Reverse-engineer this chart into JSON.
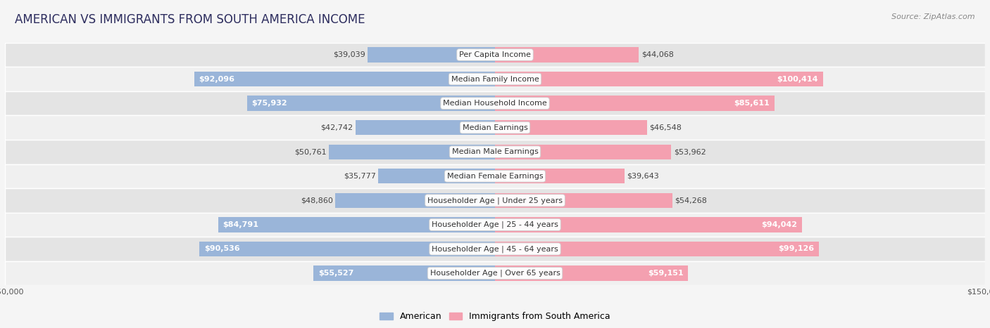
{
  "title": "AMERICAN VS IMMIGRANTS FROM SOUTH AMERICA INCOME",
  "source": "Source: ZipAtlas.com",
  "categories": [
    "Per Capita Income",
    "Median Family Income",
    "Median Household Income",
    "Median Earnings",
    "Median Male Earnings",
    "Median Female Earnings",
    "Householder Age | Under 25 years",
    "Householder Age | 25 - 44 years",
    "Householder Age | 45 - 64 years",
    "Householder Age | Over 65 years"
  ],
  "american_values": [
    39039,
    92096,
    75932,
    42742,
    50761,
    35777,
    48860,
    84791,
    90536,
    55527
  ],
  "immigrant_values": [
    44068,
    100414,
    85611,
    46548,
    53962,
    39643,
    54268,
    94042,
    99126,
    59151
  ],
  "american_color": "#9ab5d9",
  "immigrant_color": "#f4a0b0",
  "bar_height": 0.62,
  "max_value": 150000,
  "bg_color": "#f5f5f5",
  "row_bg_light": "#f0f0f0",
  "row_bg_dark": "#e4e4e4",
  "title_color": "#2d2d5e",
  "label_fontsize": 8,
  "value_fontsize": 8,
  "title_fontsize": 12,
  "legend_fontsize": 9,
  "source_fontsize": 8,
  "inside_label_threshold": 55000
}
